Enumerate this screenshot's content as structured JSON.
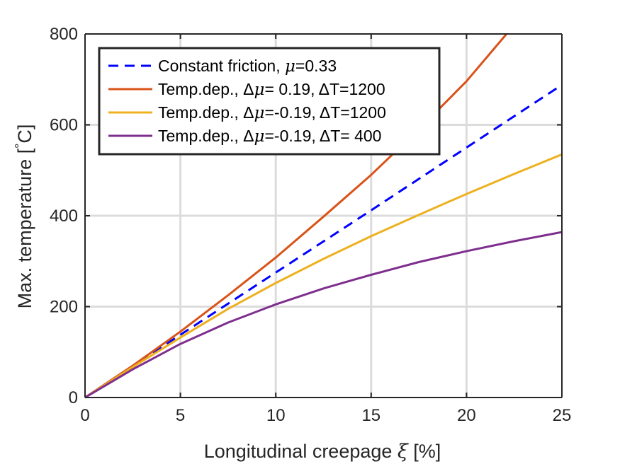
{
  "chart_data": {
    "type": "line",
    "xlabel_prefix": "Longitudinal creepage ",
    "xlabel_symbol": "ξ",
    "xlabel_suffix": " [%]",
    "ylabel_text": "Max. temperature [",
    "ylabel_deg": "°",
    "ylabel_unit": "C]",
    "xlim": [
      0,
      25
    ],
    "ylim": [
      0,
      800
    ],
    "xticks": [
      0,
      5,
      10,
      15,
      20,
      25
    ],
    "yticks": [
      0,
      200,
      400,
      600,
      800
    ],
    "grid": true,
    "legend_position": "top-left",
    "series": [
      {
        "name_parts": [
          "Constant friction, ",
          "μ",
          "=0.33"
        ],
        "color": "#0000ff",
        "dash": "dashed",
        "x": [
          0,
          5,
          10,
          15,
          20,
          25
        ],
        "y": [
          0,
          138,
          275,
          412,
          550,
          688
        ]
      },
      {
        "name_parts": [
          "Temp.dep., Δ",
          "μ",
          "= 0.19, ΔT=1200"
        ],
        "color": "#d95319",
        "dash": "solid",
        "x": [
          0,
          2.5,
          5,
          7.5,
          10,
          12.5,
          15,
          17.5,
          20,
          22.1
        ],
        "y": [
          0,
          70,
          145,
          225,
          308,
          398,
          490,
          590,
          696,
          800
        ]
      },
      {
        "name_parts": [
          "Temp.dep., Δ",
          "μ",
          "=-0.19, ΔT=1200"
        ],
        "color": "#edb120",
        "dash": "solid",
        "x": [
          0,
          2.5,
          5,
          7.5,
          10,
          12.5,
          15,
          17.5,
          20,
          22.5,
          25
        ],
        "y": [
          0,
          67,
          132,
          195,
          252,
          305,
          355,
          402,
          448,
          492,
          535
        ]
      },
      {
        "name_parts": [
          "Temp.dep., Δ",
          "μ",
          "=-0.19, ΔT= 400"
        ],
        "color": "#7e2f8e",
        "dash": "solid",
        "x": [
          0,
          2.5,
          5,
          7.5,
          10,
          12.5,
          15,
          17.5,
          20,
          22.5,
          25
        ],
        "y": [
          0,
          62,
          118,
          165,
          205,
          240,
          270,
          298,
          322,
          344,
          364
        ]
      }
    ]
  }
}
